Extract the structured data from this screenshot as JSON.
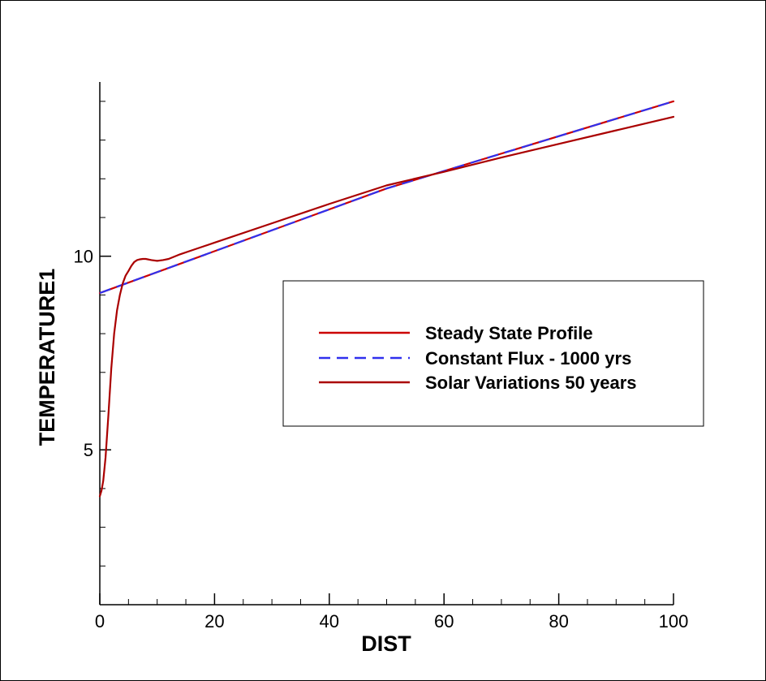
{
  "chart_data": {
    "type": "line",
    "title": "",
    "xlabel": "DIST",
    "ylabel": "TEMPERATURE1",
    "xlim": [
      0,
      100
    ],
    "ylim": [
      1,
      14.5
    ],
    "x_ticks": [
      0,
      20,
      40,
      60,
      80,
      100
    ],
    "x_tick_labels": [
      "0",
      "20",
      "40",
      "60",
      "80",
      "100"
    ],
    "x_minor_step": 5,
    "y_ticks": [
      5,
      10
    ],
    "y_tick_labels": [
      "5",
      "10"
    ],
    "y_minor_step": 1,
    "grid": false,
    "legend_position": "center-right",
    "series": [
      {
        "name": "Steady State Profile",
        "color": "#cc0000",
        "dash": "solid",
        "x": [
          0,
          50,
          100
        ],
        "y": [
          9.05,
          11.75,
          14.0
        ]
      },
      {
        "name": "Constant Flux - 1000 yrs",
        "color": "#3030ee",
        "dash": "dashed",
        "x": [
          0,
          50,
          100
        ],
        "y": [
          9.05,
          11.75,
          14.0
        ]
      },
      {
        "name": "Solar Variations 50 years",
        "color": "#aa0000",
        "dash": "solid",
        "x": [
          0,
          0.3,
          0.6,
          1,
          1.5,
          2,
          2.5,
          3,
          3.5,
          4,
          4.5,
          5,
          5.5,
          6,
          6.5,
          7,
          7.5,
          8,
          9,
          10,
          11,
          12,
          14,
          16,
          20,
          30,
          40,
          50,
          60,
          70,
          80,
          90,
          100
        ],
        "y": [
          3.8,
          3.95,
          4.2,
          4.8,
          5.9,
          7.1,
          8.0,
          8.6,
          9.0,
          9.3,
          9.5,
          9.62,
          9.75,
          9.85,
          9.9,
          9.92,
          9.93,
          9.93,
          9.9,
          9.88,
          9.9,
          9.93,
          10.05,
          10.15,
          10.35,
          10.85,
          11.35,
          11.83,
          12.18,
          12.55,
          12.9,
          13.25,
          13.6
        ]
      }
    ]
  }
}
